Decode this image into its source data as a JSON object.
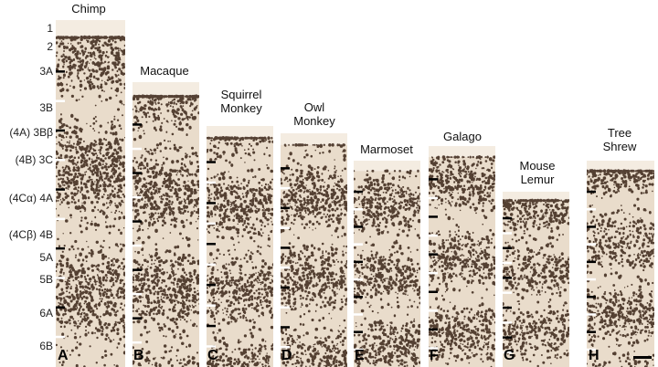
{
  "layer_labels": [
    "1",
    "2",
    "3A",
    "3B",
    "(4A) 3Bβ",
    "(4B) 3C",
    "(4Cα) 4A",
    "(4Cβ) 4B",
    "5A",
    "5B",
    "6A",
    "6B"
  ],
  "columns": [
    {
      "title": "Chimp",
      "letter": "A"
    },
    {
      "title": "Macaque",
      "letter": "B"
    },
    {
      "title": "Squirrel\nMonkey",
      "letter": "C"
    },
    {
      "title": "Owl\nMonkey",
      "letter": "D"
    },
    {
      "title": "Marmoset",
      "letter": "E"
    },
    {
      "title": "Galago",
      "letter": "F"
    },
    {
      "title": "Mouse\nLemur",
      "letter": "G"
    },
    {
      "title": "Tree\nShrew",
      "letter": "H"
    }
  ],
  "colors": {
    "tissue_background": "#e9dccb",
    "cell_stain": "#3a2418",
    "pia_surface": "#f4ece1"
  }
}
